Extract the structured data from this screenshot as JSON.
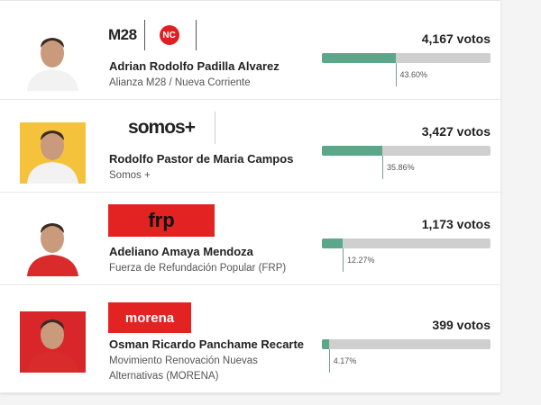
{
  "candidates": [
    {
      "name": "Adrian Rodolfo Padilla Alvarez",
      "party": "Alianza M28 / Nueva Corriente",
      "logo": [
        "M28",
        "NC"
      ],
      "votes": "4,167 votos",
      "share": 43.6,
      "share_label": "43.60%"
    },
    {
      "name": "Rodolfo Pastor de Maria Campos",
      "party": "Somos +",
      "logo": [
        "somos+"
      ],
      "votes": "3,427 votos",
      "share": 35.86,
      "share_label": "35.86%"
    },
    {
      "name": "Adeliano Amaya Mendoza",
      "party": "Fuerza de Refundación Popular (FRP)",
      "logo": [
        "frp"
      ],
      "votes": "1,173 votos",
      "share": 12.27,
      "share_label": "12.27%"
    },
    {
      "name": "Osman Ricardo Panchame Recarte",
      "party": "Movimiento Renovación Nuevas Alternativas (MORENA)",
      "logo": [
        "morena"
      ],
      "votes": "399 votos",
      "share": 4.17,
      "share_label": "4.17%"
    }
  ]
}
